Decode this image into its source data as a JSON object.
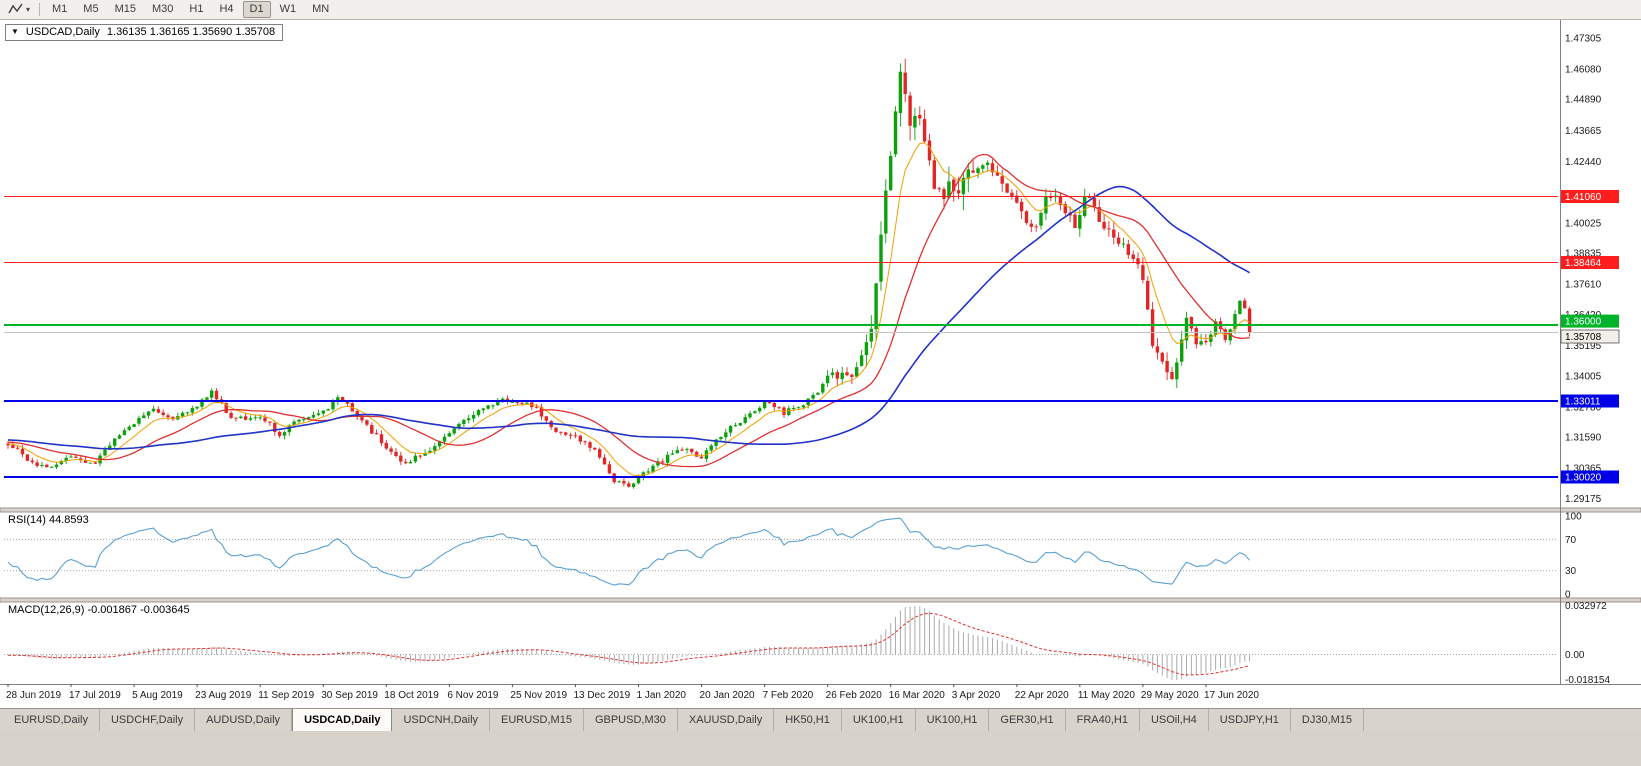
{
  "toolbar": {
    "timeframes": [
      {
        "label": "M1",
        "active": false
      },
      {
        "label": "M5",
        "active": false
      },
      {
        "label": "M15",
        "active": false
      },
      {
        "label": "M30",
        "active": false
      },
      {
        "label": "H1",
        "active": false
      },
      {
        "label": "H4",
        "active": false
      },
      {
        "label": "D1",
        "active": true
      },
      {
        "label": "W1",
        "active": false
      },
      {
        "label": "MN",
        "active": false
      }
    ]
  },
  "chart_header": {
    "collapse_glyph": "▼",
    "symbol": "USDCAD,Daily",
    "ohlc": "1.36135 1.36165 1.35690 1.35708"
  },
  "panes": {
    "rsi": {
      "label": "RSI(14) 44.8593",
      "axis_labels": [
        "100",
        "70",
        "30",
        "0"
      ]
    },
    "macd": {
      "label": "MACD(12,26,9) -0.001867 -0.003645",
      "axis_max": "0.032972",
      "axis_zero": "0.00",
      "axis_min": "-0.018154"
    }
  },
  "tabs": [
    {
      "label": "EURUSD,Daily",
      "active": false
    },
    {
      "label": "USDCHF,Daily",
      "active": false
    },
    {
      "label": "AUDUSD,Daily",
      "active": false
    },
    {
      "label": "USDCAD,Daily",
      "active": true
    },
    {
      "label": "USDCNH,Daily",
      "active": false
    },
    {
      "label": "EURUSD,M15",
      "active": false
    },
    {
      "label": "GBPUSD,M30",
      "active": false
    },
    {
      "label": "XAUUSD,Daily",
      "active": false
    },
    {
      "label": "HK50,H1",
      "active": false
    },
    {
      "label": "UK100,H1",
      "active": false
    },
    {
      "label": "UK100,H1",
      "active": false
    },
    {
      "label": "GER30,H1",
      "active": false
    },
    {
      "label": "FRA40,H1",
      "active": false
    },
    {
      "label": "USOil,H4",
      "active": false
    },
    {
      "label": "USDJPY,H1",
      "active": false
    },
    {
      "label": "DJ30,M15",
      "active": false
    }
  ],
  "colors": {
    "candle_up": "#0CA10C",
    "candle_down": "#E02626",
    "ma_fast": "#F0A000",
    "ma_mid": "#E03030",
    "ma_slow": "#2233C8",
    "rsi_line": "#5BA0D4",
    "macd_hist": "#ABABAB",
    "macd_signal": "#E03030",
    "level_dotted": "#A8A8A8",
    "bid_line": "#C4C4C4",
    "axis_text": "#1A1A1A",
    "current_tag_bg": "#F2EFE8",
    "current_tag_text": "#000000"
  },
  "chart_data": {
    "type": "candlestick",
    "symbol": "USDCAD",
    "timeframe": "Daily",
    "last_ohlc": {
      "open": 1.36135,
      "high": 1.36165,
      "low": 1.3569,
      "close": 1.35708
    },
    "y_axis": {
      "min": 1.288,
      "max": 1.4785,
      "tick_labels": [
        "1.47305",
        "1.46080",
        "1.44890",
        "1.43665",
        "1.42440",
        "1.40025",
        "1.38835",
        "1.37610",
        "1.36420",
        "1.35195",
        "1.34005",
        "1.32780",
        "1.31590",
        "1.30365",
        "1.29175"
      ]
    },
    "x_tick_labels": [
      "28 Jun 2019",
      "17 Jul 2019",
      "5 Aug 2019",
      "23 Aug 2019",
      "11 Sep 2019",
      "30 Sep 2019",
      "18 Oct 2019",
      "6 Nov 2019",
      "25 Nov 2019",
      "13 Dec 2019",
      "1 Jan 2020",
      "20 Jan 2020",
      "7 Feb 2020",
      "26 Feb 2020",
      "16 Mar 2020",
      "3 Apr 2020",
      "22 Apr 2020",
      "11 May 2020",
      "29 May 2020",
      "17 Jun 2020"
    ],
    "candles_per_xtick": 13,
    "total_candles": 257,
    "price_path_anchors": [
      [
        0,
        1.3135
      ],
      [
        4,
        1.307
      ],
      [
        8,
        1.304
      ],
      [
        13,
        1.3085
      ],
      [
        18,
        1.306
      ],
      [
        22,
        1.315
      ],
      [
        26,
        1.3215
      ],
      [
        30,
        1.327
      ],
      [
        34,
        1.323
      ],
      [
        39,
        1.329
      ],
      [
        42,
        1.334
      ],
      [
        46,
        1.323
      ],
      [
        52,
        1.3235
      ],
      [
        56,
        1.317
      ],
      [
        60,
        1.3225
      ],
      [
        65,
        1.3255
      ],
      [
        68,
        1.332
      ],
      [
        72,
        1.324
      ],
      [
        78,
        1.312
      ],
      [
        82,
        1.3055
      ],
      [
        86,
        1.309
      ],
      [
        91,
        1.318
      ],
      [
        96,
        1.325
      ],
      [
        101,
        1.3305
      ],
      [
        104,
        1.3295
      ],
      [
        109,
        1.328
      ],
      [
        113,
        1.317
      ],
      [
        117,
        1.3165
      ],
      [
        121,
        1.311
      ],
      [
        125,
        1.299
      ],
      [
        128,
        1.296
      ],
      [
        130,
        1.3005
      ],
      [
        134,
        1.306
      ],
      [
        139,
        1.311
      ],
      [
        143,
        1.3085
      ],
      [
        148,
        1.318
      ],
      [
        152,
        1.3245
      ],
      [
        156,
        1.3295
      ],
      [
        160,
        1.3255
      ],
      [
        164,
        1.3295
      ],
      [
        169,
        1.338
      ],
      [
        172,
        1.343
      ],
      [
        174,
        1.339
      ],
      [
        176,
        1.349
      ],
      [
        178,
        1.359
      ],
      [
        180,
        1.396
      ],
      [
        182,
        1.428
      ],
      [
        184,
        1.463
      ],
      [
        186,
        1.44
      ],
      [
        187,
        1.448
      ],
      [
        189,
        1.43
      ],
      [
        191,
        1.417
      ],
      [
        193,
        1.409
      ],
      [
        195,
        1.415
      ],
      [
        196,
        1.408
      ],
      [
        198,
        1.418
      ],
      [
        200,
        1.422
      ],
      [
        202,
        1.426
      ],
      [
        204,
        1.418
      ],
      [
        206,
        1.412
      ],
      [
        208,
        1.409
      ],
      [
        210,
        1.402
      ],
      [
        212,
        1.399
      ],
      [
        214,
        1.408
      ],
      [
        216,
        1.411
      ],
      [
        218,
        1.404
      ],
      [
        220,
        1.3985
      ],
      [
        222,
        1.4115
      ],
      [
        224,
        1.406
      ],
      [
        226,
        1.399
      ],
      [
        228,
        1.394
      ],
      [
        230,
        1.39
      ],
      [
        232,
        1.385
      ],
      [
        234,
        1.378
      ],
      [
        236,
        1.352
      ],
      [
        239,
        1.3425
      ],
      [
        240,
        1.3375
      ],
      [
        243,
        1.363
      ],
      [
        245,
        1.355
      ],
      [
        247,
        1.3535
      ],
      [
        249,
        1.3605
      ],
      [
        251,
        1.3545
      ],
      [
        253,
        1.364
      ],
      [
        254,
        1.369
      ],
      [
        255,
        1.3665
      ],
      [
        256,
        1.35708
      ]
    ],
    "volatility_phases": [
      [
        169,
        0.0018
      ],
      [
        176,
        0.0035
      ],
      [
        200,
        0.0075
      ],
      [
        235,
        0.0038
      ],
      [
        248,
        0.0042
      ],
      [
        999,
        0.0022
      ]
    ],
    "overlays": [
      {
        "type": "ema",
        "period": 8,
        "color": "#F0A000",
        "width": 1
      },
      {
        "type": "sma",
        "period": 20,
        "color": "#E03030",
        "width": 1.3
      },
      {
        "type": "sma",
        "period": 50,
        "color": "#2233C8",
        "width": 1.6
      }
    ],
    "horizontal_lines": [
      {
        "price": 1.4106,
        "label": "1.41060",
        "color": "#FF1E1E",
        "width": 1.4,
        "tag_dy": 0
      },
      {
        "price": 1.38464,
        "label": "1.38464",
        "color": "#FF1E1E",
        "width": 1.4,
        "tag_dy": 0
      },
      {
        "price": 1.36,
        "label": "1.36000",
        "color": "#00B42A",
        "width": 2,
        "tag_dy": -4
      },
      {
        "price": 1.33011,
        "label": "1.33011",
        "color": "#0000E6",
        "width": 1.8,
        "tag_dy": 0
      },
      {
        "price": 1.3002,
        "label": "1.30020",
        "color": "#0000E6",
        "width": 1.8,
        "tag_dy": 0
      }
    ],
    "current_price": {
      "value": 1.35708,
      "label": "1.35708",
      "tag_dy": 4
    },
    "indicators": [
      {
        "name": "RSI",
        "period": 14,
        "current": 44.8593,
        "range": [
          0,
          100
        ],
        "levels": [
          30,
          70
        ]
      },
      {
        "name": "MACD",
        "fast": 12,
        "slow": 26,
        "signal": 9,
        "current_main": -0.001867,
        "current_signal": -0.003645,
        "axis_max": 0.032972,
        "axis_min": -0.018154
      }
    ]
  }
}
